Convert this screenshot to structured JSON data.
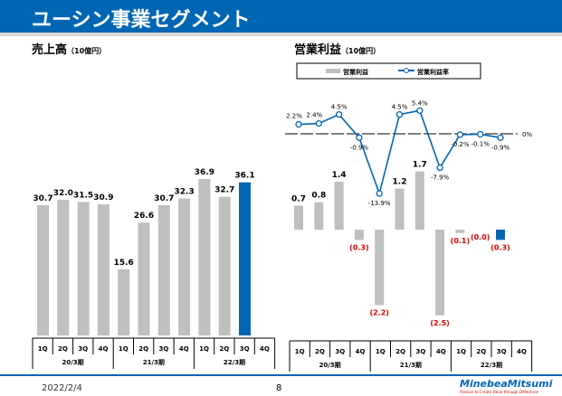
{
  "header": {
    "title": "ユーシン事業セグメント"
  },
  "footer": {
    "date": "2022/2/4",
    "page": "8",
    "logo": "MinebeaMitsumi",
    "tagline": "Passion to Create Value through Difference"
  },
  "chart_data": [
    {
      "type": "bar",
      "title": "売上高",
      "unit": "（10億円）",
      "categories": [
        "1Q",
        "2Q",
        "3Q",
        "4Q",
        "1Q",
        "2Q",
        "3Q",
        "4Q",
        "1Q",
        "2Q",
        "3Q",
        "4Q"
      ],
      "groups": [
        "20/3期",
        "21/3期",
        "22/3期"
      ],
      "values": [
        30.7,
        32.0,
        31.5,
        30.9,
        15.6,
        26.6,
        30.7,
        32.3,
        36.9,
        32.7,
        36.1,
        null
      ],
      "labels": [
        "30.7",
        "32.0",
        "31.5",
        "30.9",
        "15.6",
        "26.6",
        "30.7",
        "32.3",
        "36.9",
        "32.7",
        "36.1",
        ""
      ],
      "colors": {
        "bar": "#bfbfbf",
        "highlight": "#0066b3"
      }
    },
    {
      "type": "bar+line",
      "title": "営業利益",
      "unit": "（10億円）",
      "legend": [
        "営業利益",
        "営業利益率"
      ],
      "legend_position": "top",
      "categories": [
        "1Q",
        "2Q",
        "3Q",
        "4Q",
        "1Q",
        "2Q",
        "3Q",
        "4Q",
        "1Q",
        "2Q",
        "3Q",
        "4Q"
      ],
      "groups": [
        "20/3期",
        "21/3期",
        "22/3期"
      ],
      "values": [
        0.7,
        0.8,
        1.4,
        -0.3,
        -2.2,
        1.2,
        1.7,
        -2.5,
        -0.1,
        0.0,
        -0.3,
        null
      ],
      "labels": [
        "0.7",
        "0.8",
        "1.4",
        "(0.3)",
        "(2.2)",
        "1.2",
        "1.7",
        "(2.5)",
        "(0.1)",
        "(0.0)",
        "(0.3)",
        ""
      ],
      "rate": [
        2.2,
        2.4,
        4.5,
        -0.9,
        -13.9,
        4.5,
        5.4,
        -7.9,
        -0.2,
        -0.1,
        -0.9,
        null
      ],
      "rate_labels": [
        "2.2%",
        "2.4%",
        "4.5%",
        "-0.9%",
        "-13.9%",
        "4.5%",
        "5.4%",
        "-7.9%",
        "-0.2%",
        "-0.1%",
        "-0.9%",
        ""
      ],
      "zero_label": "0%",
      "colors": {
        "bar": "#bfbfbf",
        "highlight": "#0066b3",
        "line": "#0066b3",
        "negative_label": "#e00000"
      }
    }
  ]
}
